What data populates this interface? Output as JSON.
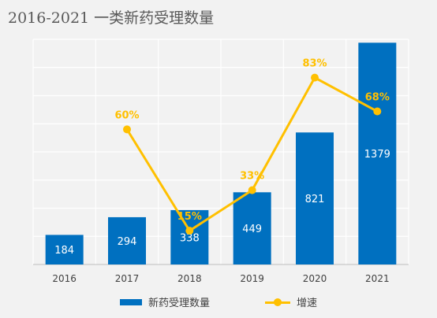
{
  "title": "2016-2021 一类新药受理数量",
  "colors": {
    "bar": "#0070c0",
    "line": "#ffc000",
    "grid": "#d9d9d9",
    "axis": "#bfbfbf",
    "background": "#f2f2f2",
    "plot_background": "#f2f2f2"
  },
  "legend": {
    "bar_label": "新药受理数量",
    "line_label": "增速"
  },
  "chart_data": {
    "type": "bar",
    "title": "2016-2021 一类新药受理数量",
    "categories": [
      "2016",
      "2017",
      "2018",
      "2019",
      "2020",
      "2021"
    ],
    "series": [
      {
        "name": "新药受理数量",
        "type": "bar",
        "values": [
          184,
          294,
          338,
          449,
          821,
          1379
        ],
        "data_labels": [
          "184",
          "294",
          "338",
          "449",
          "821",
          "1379"
        ]
      },
      {
        "name": "增速",
        "type": "line",
        "values": [
          null,
          60,
          15,
          33,
          83,
          68
        ],
        "data_labels": [
          null,
          "60%",
          "15%",
          "33%",
          "83%",
          "68%"
        ]
      }
    ],
    "ylim": [
      0,
      1400
    ],
    "y2lim": [
      0,
      100
    ],
    "grid": true,
    "legend_position": "bottom"
  }
}
